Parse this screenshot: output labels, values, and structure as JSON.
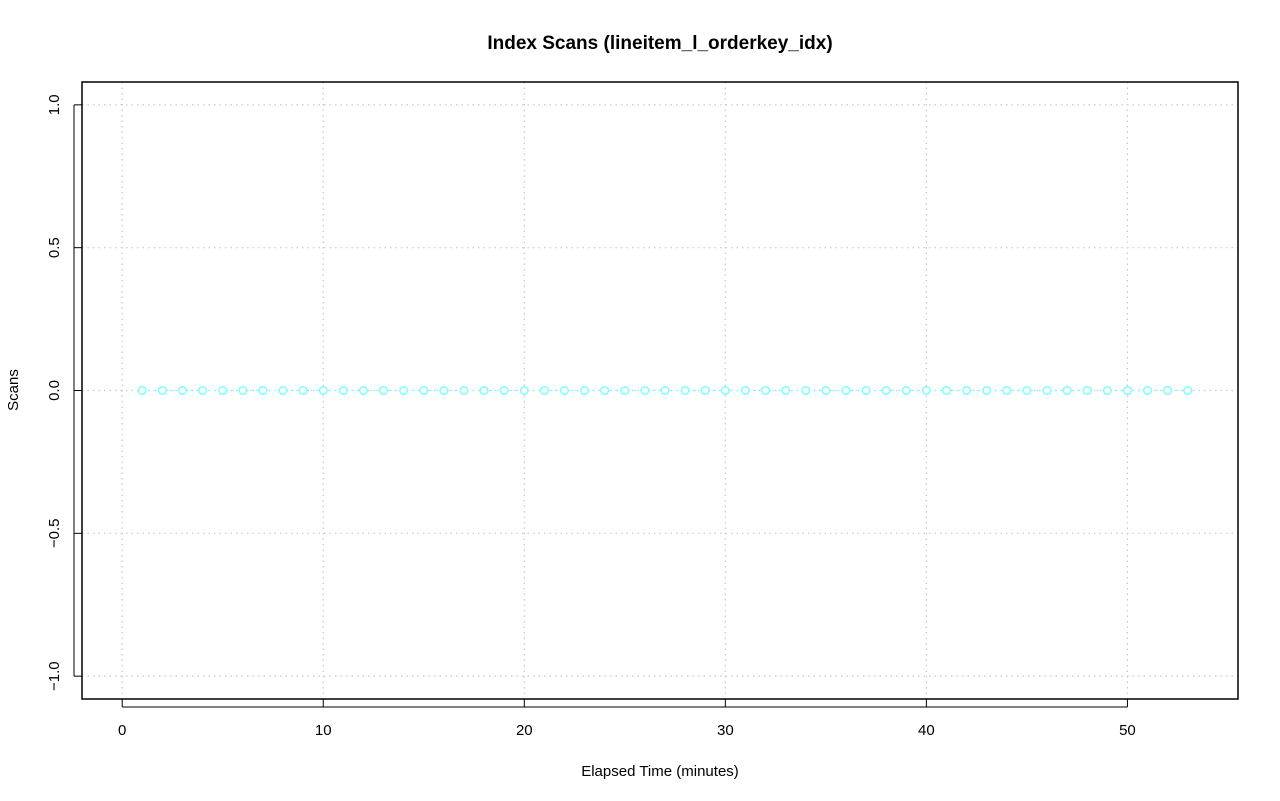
{
  "chart_data": {
    "type": "line",
    "title": "Index Scans (lineitem_l_orderkey_idx)",
    "xlabel": "Elapsed Time (minutes)",
    "ylabel": "Scans",
    "xlim": [
      -2,
      55.5
    ],
    "ylim": [
      -1.08,
      1.08
    ],
    "x_ticks": [
      0,
      10,
      20,
      30,
      40,
      50
    ],
    "x_tick_labels": [
      "0",
      "10",
      "20",
      "30",
      "40",
      "50"
    ],
    "y_ticks": [
      -1.0,
      -0.5,
      0.0,
      0.5,
      1.0
    ],
    "y_tick_labels": [
      "−1.0",
      "−0.5",
      "0.0",
      "0.5",
      "1.0"
    ],
    "grid": true,
    "series": [
      {
        "color": "#7fffff",
        "marker": "open-circle",
        "line_style": "dotted",
        "x": [
          1,
          2,
          3,
          4,
          5,
          6,
          7,
          8,
          9,
          10,
          11,
          12,
          13,
          14,
          15,
          16,
          17,
          18,
          19,
          20,
          21,
          22,
          23,
          24,
          25,
          26,
          27,
          28,
          29,
          30,
          31,
          32,
          33,
          34,
          35,
          36,
          37,
          38,
          39,
          40,
          41,
          42,
          43,
          44,
          45,
          46,
          47,
          48,
          49,
          50,
          51,
          52,
          53
        ],
        "y": [
          0,
          0,
          0,
          0,
          0,
          0,
          0,
          0,
          0,
          0,
          0,
          0,
          0,
          0,
          0,
          0,
          0,
          0,
          0,
          0,
          0,
          0,
          0,
          0,
          0,
          0,
          0,
          0,
          0,
          0,
          0,
          0,
          0,
          0,
          0,
          0,
          0,
          0,
          0,
          0,
          0,
          0,
          0,
          0,
          0,
          0,
          0,
          0,
          0,
          0,
          0,
          0,
          0
        ]
      }
    ]
  }
}
